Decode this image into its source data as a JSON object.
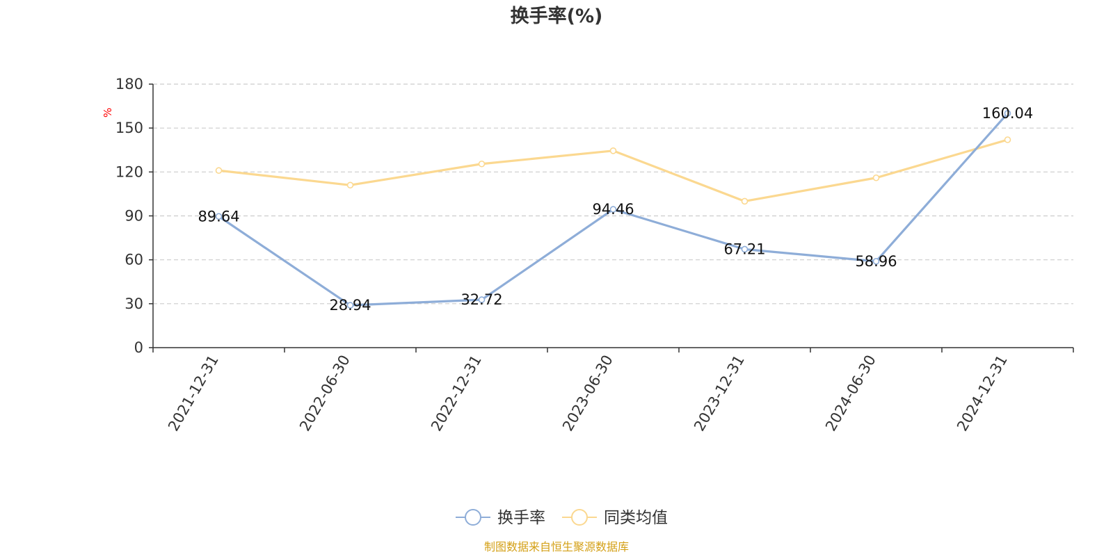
{
  "chart_data": {
    "type": "line",
    "title": "换手率(%)",
    "ylabel": "%",
    "xlabel": "",
    "ylim": [
      0,
      180
    ],
    "yticks": [
      0,
      30,
      60,
      90,
      120,
      150,
      180
    ],
    "grid": true,
    "legend_position": "bottom-center",
    "categories": [
      "2021-12-31",
      "2022-06-30",
      "2022-12-31",
      "2023-06-30",
      "2023-12-31",
      "2024-06-30",
      "2024-12-31"
    ],
    "series": [
      {
        "name": "换手率",
        "color": "#8eadd8",
        "values": [
          89.64,
          28.94,
          32.72,
          94.46,
          67.21,
          58.96,
          160.04
        ],
        "data_labels": [
          "89.64",
          "28.94",
          "32.72",
          "94.46",
          "67.21",
          "58.96",
          "160.04"
        ],
        "show_labels": true
      },
      {
        "name": "同类均值",
        "color": "#fbd890",
        "values": [
          121,
          111,
          125.5,
          134.5,
          100,
          116,
          142
        ],
        "show_labels": false
      }
    ],
    "source": "制图数据来自恒生聚源数据库",
    "colors": {
      "axis": "#333333",
      "grid": "#cccccc",
      "ylabel": "#ff0000",
      "source": "#d4a017",
      "title": "#333333"
    }
  }
}
